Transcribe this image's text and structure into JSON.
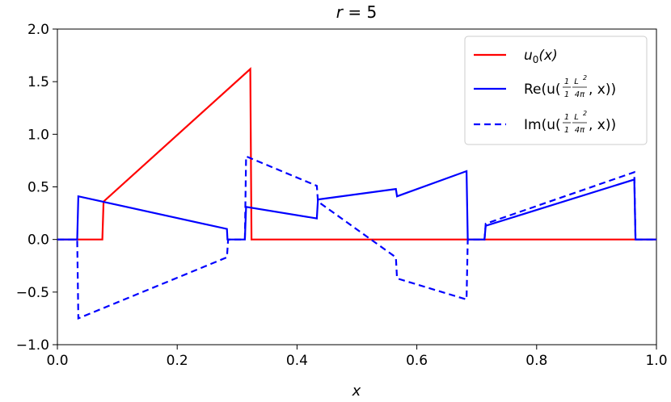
{
  "chart_data": {
    "type": "line",
    "title": "r = 5",
    "xlabel": "x",
    "ylabel": "",
    "xlim": [
      0.0,
      1.0
    ],
    "ylim": [
      -1.0,
      2.0
    ],
    "xticks": [
      "0.0",
      "0.2",
      "0.4",
      "0.6",
      "0.8",
      "1.0"
    ],
    "yticks": [
      "−1.0",
      "−0.5",
      "0.0",
      "0.5",
      "1.0",
      "1.5",
      "2.0"
    ],
    "grid": false,
    "legend_position": "top-right",
    "series": [
      {
        "name": "u0(x)",
        "color": "#ff0000",
        "style": "solid",
        "x": [
          0.0,
          0.075,
          0.077,
          0.322,
          0.324,
          1.0
        ],
        "y": [
          0.0,
          0.0,
          0.36,
          1.62,
          0.0,
          0.0
        ]
      },
      {
        "name": "Re(u((1/1)(L²/4π), x))",
        "color": "#0000ff",
        "style": "solid",
        "x": [
          0.0,
          0.033,
          0.035,
          0.283,
          0.284,
          0.287,
          0.313,
          0.315,
          0.433,
          0.435,
          0.565,
          0.567,
          0.683,
          0.685,
          0.713,
          0.715,
          0.963,
          0.965,
          1.0
        ],
        "y": [
          0.0,
          0.0,
          0.41,
          0.1,
          0.0,
          0.0,
          0.0,
          0.31,
          0.2,
          0.38,
          0.48,
          0.41,
          0.65,
          0.0,
          0.0,
          0.13,
          0.57,
          0.0,
          0.0
        ]
      },
      {
        "name": "Im(u((1/1)(L²/4π), x))",
        "color": "#0000ff",
        "style": "dashed",
        "x": [
          0.0,
          0.033,
          0.035,
          0.283,
          0.285,
          0.287,
          0.313,
          0.315,
          0.433,
          0.435,
          0.565,
          0.567,
          0.683,
          0.685,
          0.713,
          0.715,
          0.963,
          0.965,
          1.0
        ],
        "y": [
          0.0,
          0.0,
          -0.75,
          -0.17,
          0.0,
          0.0,
          0.0,
          0.79,
          0.51,
          0.36,
          -0.17,
          -0.37,
          -0.57,
          0.0,
          0.0,
          0.15,
          0.64,
          0.0,
          0.0
        ]
      }
    ]
  },
  "legend": {
    "u0": {
      "main": "u",
      "sub": "0",
      "rest": "(x)"
    },
    "re": {
      "prefix": "Re(u(",
      "f1n": "1",
      "f1d": "1",
      "f2n": "L",
      "f2sup": "2",
      "f2d": "4π",
      "suffix": ", x))"
    },
    "im": {
      "prefix": "Im(u(",
      "f1n": "1",
      "f1d": "1",
      "f2n": "L",
      "f2sup": "2",
      "f2d": "4π",
      "suffix": ", x))"
    }
  }
}
